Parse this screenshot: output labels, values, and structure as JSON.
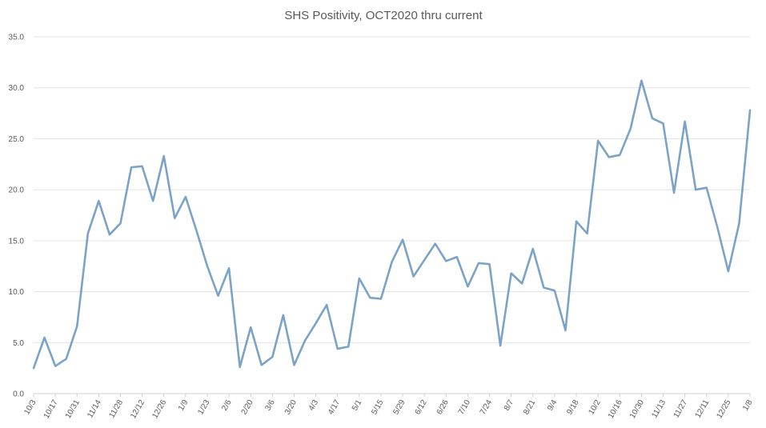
{
  "chart_data": {
    "type": "line",
    "title": "SHS Positivity, OCT2020 thru current",
    "xlabel": "",
    "ylabel": "",
    "ylim": [
      0,
      35
    ],
    "y_ticks": [
      "0.0",
      "5.0",
      "10.0",
      "15.0",
      "20.0",
      "25.0",
      "30.0",
      "35.0"
    ],
    "y_tick_values": [
      0,
      5,
      10,
      15,
      20,
      25,
      30,
      35
    ],
    "grid": true,
    "legend": "none",
    "x_tick_labels": [
      "10/3",
      "10/17",
      "10/31",
      "11/14",
      "11/28",
      "12/12",
      "12/26",
      "1/9",
      "1/23",
      "2/6",
      "2/20",
      "3/6",
      "3/20",
      "4/3",
      "4/17",
      "5/1",
      "5/15",
      "5/29",
      "6/12",
      "6/26",
      "7/10",
      "7/24",
      "8/7",
      "8/21",
      "9/4",
      "9/18",
      "10/2",
      "10/16",
      "10/30",
      "11/13",
      "11/27",
      "12/11",
      "12/25",
      "1/8"
    ],
    "series": [
      {
        "color": "#7ba3c8",
        "values": [
          2.5,
          5.5,
          2.7,
          3.4,
          6.6,
          15.7,
          18.9,
          15.6,
          16.7,
          22.2,
          22.3,
          18.9,
          23.3,
          17.2,
          19.3,
          16.0,
          12.5,
          9.6,
          12.3,
          2.6,
          6.5,
          2.8,
          3.6,
          7.7,
          2.8,
          5.2,
          6.9,
          8.7,
          4.4,
          4.6,
          11.3,
          9.4,
          9.3,
          12.9,
          15.1,
          11.5,
          13.1,
          14.7,
          13.0,
          13.4,
          10.5,
          12.8,
          12.7,
          4.7,
          11.8,
          10.8,
          14.2,
          10.4,
          10.1,
          6.2,
          16.9,
          15.7,
          24.8,
          23.2,
          23.4,
          26.0,
          30.7,
          27.0,
          26.5,
          19.7,
          26.7,
          20.0,
          20.2,
          16.3,
          12.0,
          16.7,
          27.8
        ]
      }
    ]
  }
}
